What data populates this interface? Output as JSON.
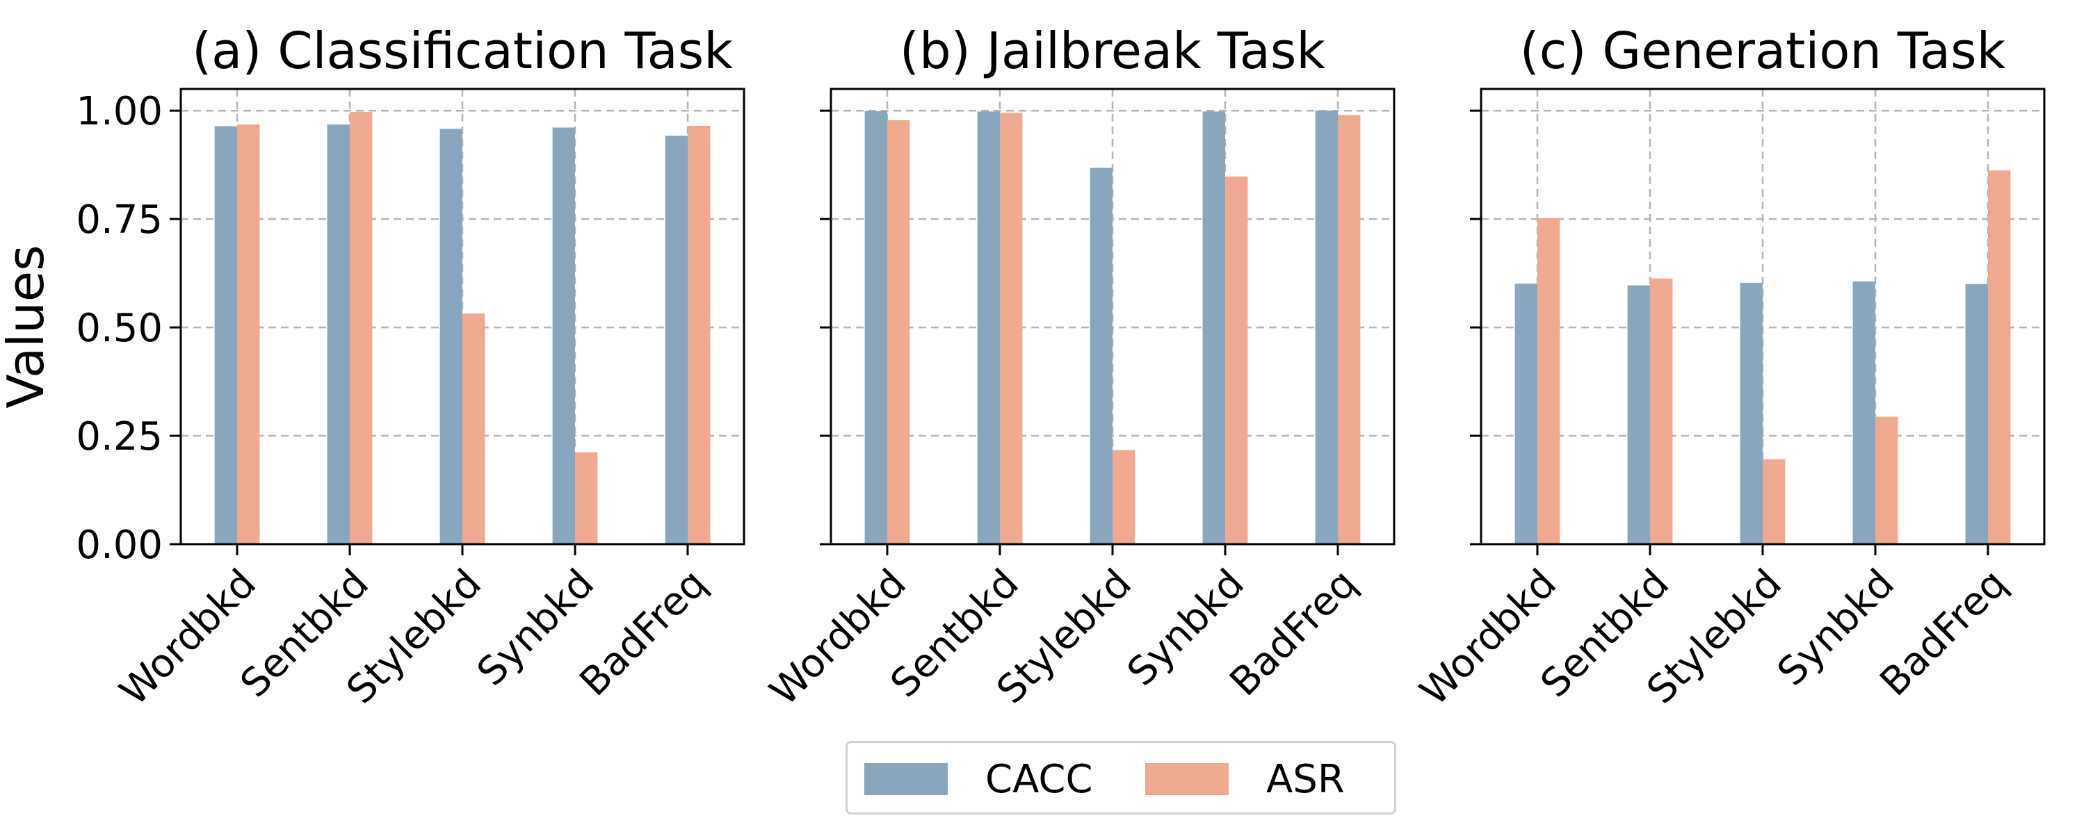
{
  "y_axis_label": "Values",
  "legend": [
    {
      "label": "CACC",
      "color": "#89a6bf"
    },
    {
      "label": "ASR",
      "color": "#f0a991"
    }
  ],
  "chart_data": [
    {
      "type": "bar",
      "title": "(a) Classification Task",
      "categories": [
        "Wordbkd",
        "Sentbkd",
        "Stylebkd",
        "Synbkd",
        "BadFreq"
      ],
      "series": [
        {
          "name": "CACC",
          "values": [
            0.964,
            0.968,
            0.958,
            0.961,
            0.942
          ]
        },
        {
          "name": "ASR",
          "values": [
            0.968,
            0.997,
            0.532,
            0.212,
            0.965
          ]
        }
      ],
      "ylabel": "Values",
      "ylim": [
        0,
        1.05
      ],
      "yticks": [
        "0.00",
        "0.25",
        "0.50",
        "0.75",
        "1.00"
      ],
      "grid": true
    },
    {
      "type": "bar",
      "title": "(b) Jailbreak Task",
      "categories": [
        "Wordbkd",
        "Sentbkd",
        "Stylebkd",
        "Synbkd",
        "BadFreq"
      ],
      "series": [
        {
          "name": "CACC",
          "values": [
            0.999,
            0.998,
            0.868,
            0.998,
            1.0
          ]
        },
        {
          "name": "ASR",
          "values": [
            0.978,
            0.995,
            0.217,
            0.848,
            0.99
          ]
        }
      ],
      "ylim": [
        0,
        1.05
      ],
      "grid": true
    },
    {
      "type": "bar",
      "title": "(c) Generation Task",
      "categories": [
        "Wordbkd",
        "Sentbkd",
        "Stylebkd",
        "Synbkd",
        "BadFreq"
      ],
      "series": [
        {
          "name": "CACC",
          "values": [
            0.601,
            0.597,
            0.603,
            0.606,
            0.6
          ]
        },
        {
          "name": "ASR",
          "values": [
            0.752,
            0.613,
            0.196,
            0.294,
            0.862
          ]
        }
      ],
      "ylim": [
        0,
        1.05
      ],
      "grid": true
    }
  ]
}
